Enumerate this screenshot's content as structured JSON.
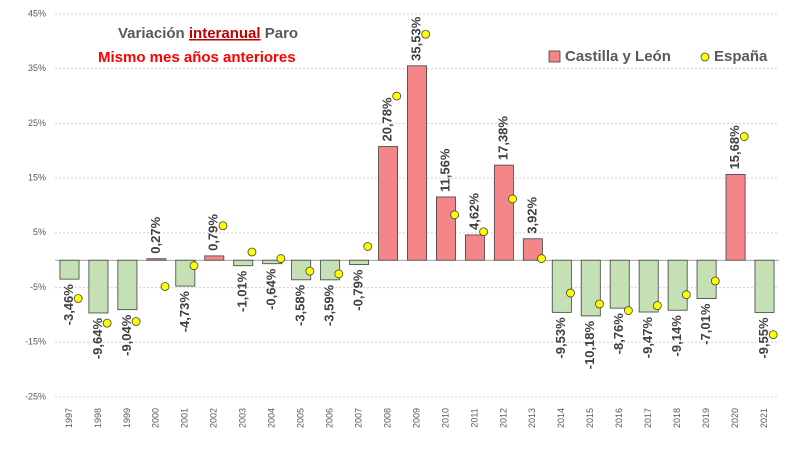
{
  "chart_data": {
    "type": "bar",
    "title": {
      "prefix": "Variación",
      "emphasis": "interanual",
      "suffix": "Paro"
    },
    "subtitle": "Mismo mes años anteriores",
    "categories": [
      "1997",
      "1998",
      "1999",
      "2000",
      "2001",
      "2002",
      "2003",
      "2004",
      "2005",
      "2006",
      "2007",
      "2008",
      "2009",
      "2010",
      "2011",
      "2012",
      "2013",
      "2014",
      "2015",
      "2016",
      "2017",
      "2018",
      "2019",
      "2020",
      "2021"
    ],
    "series": [
      {
        "name": "Castilla y León",
        "type": "bar",
        "color": "#f4868a",
        "negative_color": "#c5e0b4",
        "values": [
          -3.46,
          -9.64,
          -9.04,
          0.27,
          -4.73,
          0.79,
          -1.01,
          -0.64,
          -3.58,
          -3.59,
          -0.79,
          20.78,
          35.53,
          11.56,
          4.62,
          17.38,
          3.92,
          -9.53,
          -10.18,
          -8.76,
          -9.47,
          -9.14,
          -7.01,
          15.68,
          -9.55
        ],
        "value_labels": [
          "-3,46%",
          "-9,64%",
          "-9,04%",
          "0,27%",
          "-4,73%",
          "0,79%",
          "-1,01%",
          "-0,64%",
          "-3,58%",
          "-3,59%",
          "-0,79%",
          "20,78%",
          "35,53%",
          "11,56%",
          "4,62%",
          "17,38%",
          "3,92%",
          "-9,53%",
          "-10,18%",
          "-8,76%",
          "-9,47%",
          "-9,14%",
          "-7,01%",
          "15,68%",
          "-9,55%"
        ]
      },
      {
        "name": "España",
        "type": "scatter",
        "color": "#ffff00",
        "values": [
          -7,
          -11.5,
          -11.2,
          -4.8,
          -1,
          6.3,
          1.5,
          0.3,
          -2,
          -2.5,
          2.5,
          30,
          41.3,
          8.3,
          5.2,
          11.2,
          0.3,
          -6,
          -8,
          -9.2,
          -8.3,
          -6.3,
          -3.8,
          22.6,
          -13.6
        ]
      }
    ],
    "ylim": [
      -25,
      45
    ],
    "yticks": [
      {
        "value": -25,
        "label": "-25%"
      },
      {
        "value": -15,
        "label": "-15%"
      },
      {
        "value": -5,
        "label": "-5%"
      },
      {
        "value": 5,
        "label": "5%"
      },
      {
        "value": 15,
        "label": "15%"
      },
      {
        "value": 25,
        "label": "25%"
      },
      {
        "value": 35,
        "label": "35%"
      },
      {
        "value": 45,
        "label": "45%"
      }
    ],
    "grid": true,
    "legend": "top-right"
  }
}
